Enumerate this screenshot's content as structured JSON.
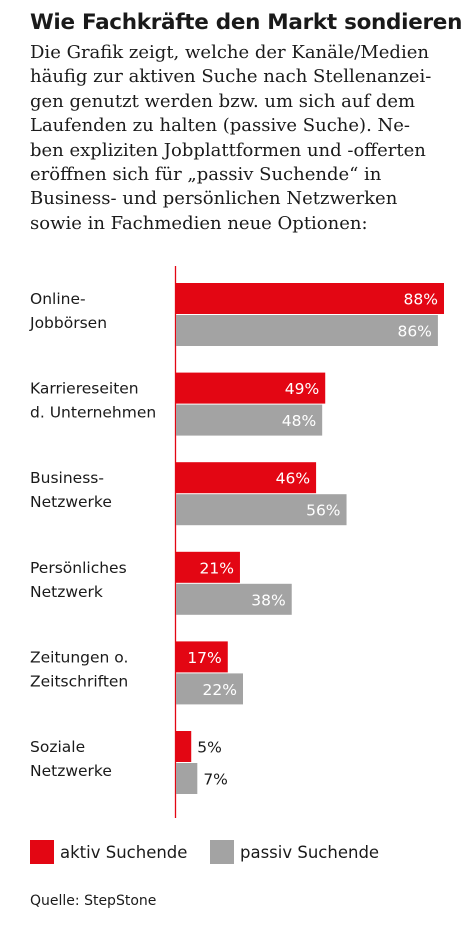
{
  "title": "Wie Fachkräfte den Markt sondieren",
  "description_lines": [
    "Die Grafik zeigt, welche der Kanäle/Medien",
    "häufig zur aktiven Suche nach Stellenanzei-",
    "gen genutzt werden bzw. um sich auf dem",
    "Laufenden zu halten (passive Suche). Ne-",
    "ben expliziten Jobplattformen und -offerten",
    "eröffnen sich für „passiv Suchende“ in",
    "Business- und persönlichen Netzwerken",
    "sowie in Fachmedien neue Optionen:"
  ],
  "source": "Quelle: StepStone",
  "chart_data": {
    "type": "bar",
    "orientation": "horizontal",
    "categories": [
      [
        "Online-",
        "Jobbörsen"
      ],
      [
        "Karriereseiten",
        "d. Unternehmen"
      ],
      [
        "Business-",
        "Netzwerke"
      ],
      [
        "Persönliches",
        "Netzwerk"
      ],
      [
        "Zeitungen o.",
        "Zeitschriften"
      ],
      [
        "Soziale",
        "Netzwerke"
      ]
    ],
    "series": [
      {
        "name": "aktiv Suchende",
        "color": "#e30613",
        "values": [
          88,
          49,
          46,
          21,
          17,
          5
        ],
        "labels": [
          "88%",
          "49%",
          "46%",
          "21%",
          "17%",
          "5%"
        ]
      },
      {
        "name": "passiv Suchende",
        "color": "#a3a3a3",
        "values": [
          86,
          48,
          56,
          38,
          22,
          7
        ],
        "labels": [
          "86%",
          "48%",
          "56%",
          "38%",
          "22%",
          "7%"
        ]
      }
    ],
    "xlim": [
      0,
      88
    ],
    "grid": false,
    "legend_position": "bottom",
    "axis_line_color": "#e30613"
  }
}
